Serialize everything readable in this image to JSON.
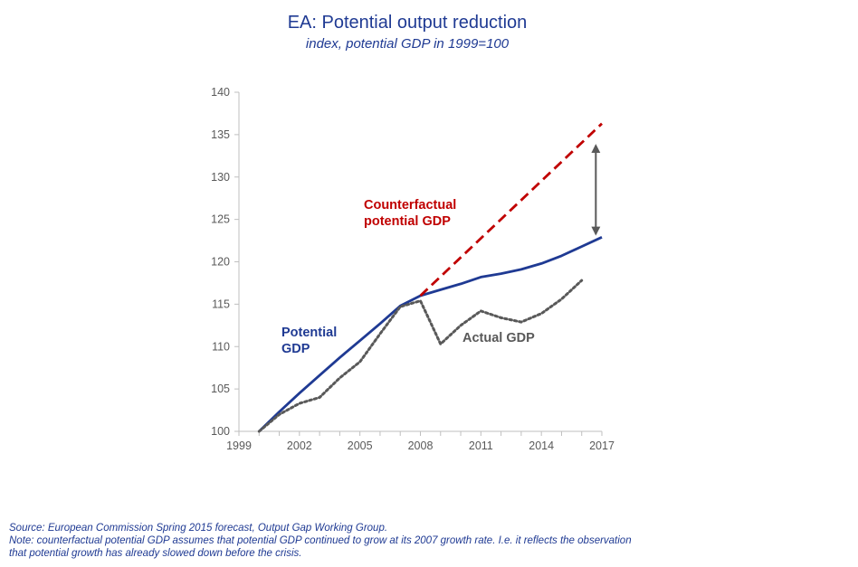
{
  "title": "EA: Potential output reduction",
  "subtitle": "index, potential GDP in 1999=100",
  "source_lines": [
    "Source: European Commission Spring 2015 forecast, Output Gap Working Group.",
    "Note: counterfactual potential GDP assumes that potential GDP continued to grow at its 2007 growth rate. I.e. it reflects the observation",
    "that potential growth has already slowed down before the crisis."
  ],
  "chart_data": {
    "type": "line",
    "xlabel": "",
    "ylabel": "",
    "xlim": [
      1999,
      2017
    ],
    "ylim": [
      100,
      140
    ],
    "x_ticks": [
      "1999",
      "2002",
      "2005",
      "2008",
      "2011",
      "2014",
      "2017"
    ],
    "y_ticks": [
      "100",
      "105",
      "110",
      "115",
      "120",
      "125",
      "130",
      "135",
      "140"
    ],
    "grid": false,
    "series": [
      {
        "name": "Potential GDP",
        "label_lines": [
          "Potential",
          "GDP"
        ],
        "color": "#1f3a93",
        "style": "solid",
        "x": [
          2000,
          2001,
          2002,
          2003,
          2004,
          2005,
          2006,
          2007,
          2008,
          2009,
          2010,
          2011,
          2012,
          2013,
          2014,
          2015,
          2016,
          2017
        ],
        "y": [
          100.0,
          102.3,
          104.5,
          106.6,
          108.7,
          110.7,
          112.7,
          114.8,
          116.0,
          116.7,
          117.4,
          118.2,
          118.6,
          119.1,
          119.8,
          120.7,
          121.8,
          122.9
        ]
      },
      {
        "name": "Counterfactual potential GDP",
        "label_lines": [
          "Counterfactual",
          "potential GDP"
        ],
        "color": "#c00000",
        "style": "dashed",
        "x": [
          2008,
          2017
        ],
        "y": [
          116.0,
          136.3
        ]
      },
      {
        "name": "Actual GDP",
        "label_lines": [
          "Actual GDP"
        ],
        "color": "#595959",
        "style": "dotted",
        "x": [
          2000,
          2001,
          2002,
          2003,
          2004,
          2005,
          2006,
          2007,
          2008,
          2009,
          2010,
          2011,
          2012,
          2013,
          2014,
          2015,
          2016
        ],
        "y": [
          100.0,
          102.0,
          103.3,
          104.0,
          106.3,
          108.2,
          111.5,
          114.7,
          115.4,
          110.3,
          112.5,
          114.2,
          113.4,
          112.9,
          113.9,
          115.6,
          117.8
        ]
      }
    ],
    "annotation": {
      "type": "double-arrow",
      "x": 2016.7,
      "y": [
        123.3,
        133.7
      ],
      "color": "#595959"
    }
  }
}
